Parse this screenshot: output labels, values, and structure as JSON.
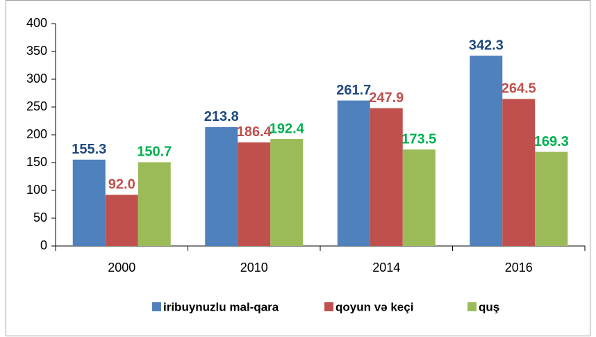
{
  "chart_data": {
    "type": "bar",
    "categories": [
      "2000",
      "2010",
      "2014",
      "2016"
    ],
    "series": [
      {
        "name": "iribuynuzlu mal-qara",
        "color": "#4f81bd",
        "label_color": "#1f497d",
        "values": [
          155.3,
          213.8,
          261.7,
          342.3
        ],
        "value_labels": [
          "155.3",
          "213.8",
          "261.7",
          "342.3"
        ]
      },
      {
        "name": "qoyun və keçi",
        "color": "#c0504d",
        "label_color": "#c0504d",
        "values": [
          92.0,
          186.4,
          247.9,
          264.5
        ],
        "value_labels": [
          "92.0",
          "186.4",
          "247.9",
          "264.5"
        ]
      },
      {
        "name": "quş",
        "color": "#9bbb59",
        "label_color": "#00b050",
        "values": [
          150.7,
          192.4,
          173.5,
          169.3
        ],
        "value_labels": [
          "150.7",
          "192.4",
          "173.5",
          "169.3"
        ]
      }
    ],
    "ylim": [
      0,
      400
    ],
    "yticks": [
      0,
      50,
      100,
      150,
      200,
      250,
      300,
      350,
      400
    ],
    "legend": "bottom"
  }
}
